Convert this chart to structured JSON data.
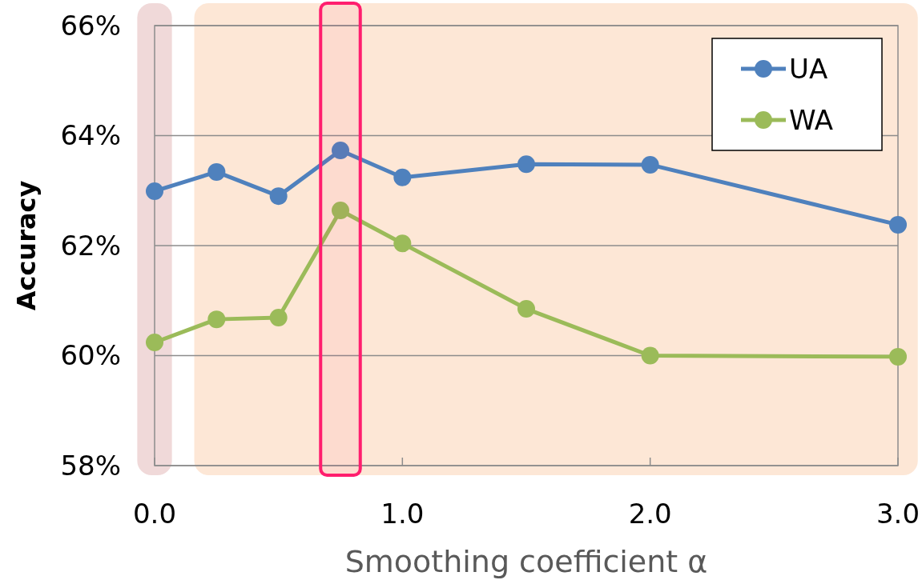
{
  "chart_data": {
    "type": "line",
    "xlabel": "Smoothing coefficient α",
    "ylabel": "Accuracy",
    "x": [
      0,
      0.25,
      0.5,
      0.75,
      1.0,
      1.5,
      2.0,
      3.0
    ],
    "series": [
      {
        "name": "UA",
        "color": "#4f81bd",
        "values": [
          62.99,
          63.34,
          62.9,
          63.73,
          63.24,
          63.48,
          63.47,
          62.38
        ]
      },
      {
        "name": "WA",
        "color": "#9bbb59",
        "values": [
          60.24,
          60.66,
          60.69,
          62.64,
          62.04,
          60.85,
          60.0,
          59.98
        ]
      }
    ],
    "xlim": [
      0,
      3
    ],
    "xticks": [
      {
        "value": 0,
        "label": "0.0"
      },
      {
        "value": 1,
        "label": "1.0"
      },
      {
        "value": 2,
        "label": "2.0"
      },
      {
        "value": 3,
        "label": "3.0"
      }
    ],
    "ylim": [
      58,
      66
    ],
    "yticks": [
      {
        "value": 58,
        "label": "58%"
      },
      {
        "value": 60,
        "label": "60%"
      },
      {
        "value": 62,
        "label": "62%"
      },
      {
        "value": 64,
        "label": "64%"
      },
      {
        "value": 66,
        "label": "66%"
      }
    ],
    "bands": [
      {
        "axis": "x",
        "from": -0.07,
        "to": 0.07,
        "color": "#f0d9d9"
      },
      {
        "axis": "x",
        "from": 0.16,
        "to": 3.08,
        "color": "#fde7d6"
      },
      {
        "axis": "x",
        "from": 0.67,
        "to": 0.83,
        "color": "#ff1e6e"
      }
    ],
    "grid": "y",
    "legend": "top right",
    "marker": "circle",
    "line_style": "solid"
  }
}
